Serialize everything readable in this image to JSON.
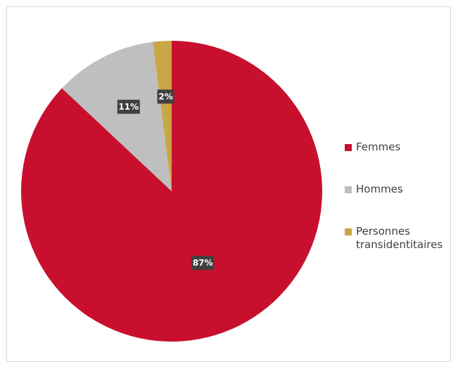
{
  "chart_data": {
    "type": "pie",
    "title": "",
    "start_angle_deg": 0,
    "direction": "clockwise",
    "legend_position": "right",
    "slices": [
      {
        "name": "Femmes",
        "value": 87,
        "label": "87%",
        "color": "#c8102e"
      },
      {
        "name": "Hommes",
        "value": 11,
        "label": "11%",
        "color": "#bfbfbf"
      },
      {
        "name": "Personnes transidentitaires",
        "value": 2,
        "label": "2%",
        "color": "#c9a646"
      }
    ]
  }
}
